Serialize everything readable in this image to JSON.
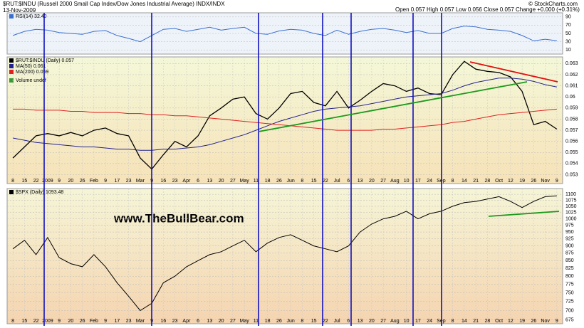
{
  "chart_data": [
    {
      "type": "line",
      "title": "$RUT:$INDU (Russell 2000 Small Cap Index/Dow Jones Industrial Average) INDX/INDX",
      "date": "13-Nov-2009",
      "quote": "Open 0.057 High 0.057 Low 0.056 Close 0.057 Change +0.000 (+0.31%)",
      "credit": "© StockCharts.com",
      "ylim": [
        0,
        100
      ],
      "yticks": [
        10,
        30,
        50,
        70,
        90
      ],
      "grid": true,
      "series": [
        {
          "name": "RSI(14) 32.40",
          "color": "#3a6fd0",
          "values": [
            45,
            55,
            60,
            58,
            52,
            50,
            48,
            55,
            57,
            45,
            38,
            30,
            45,
            60,
            62,
            55,
            60,
            65,
            58,
            62,
            65,
            50,
            48,
            56,
            60,
            58,
            50,
            45,
            58,
            48,
            55,
            60,
            62,
            58,
            52,
            57,
            50,
            50,
            62,
            68,
            66,
            60,
            58,
            55,
            45,
            32,
            36,
            32.4
          ]
        }
      ]
    },
    {
      "type": "line",
      "categories": [
        "8",
        "15",
        "22",
        "2009",
        "9",
        "20",
        "26",
        "Feb",
        "9",
        "17",
        "23",
        "Mar",
        "9",
        "16",
        "23",
        "Apr",
        "6",
        "13",
        "20",
        "27",
        "May",
        "11",
        "18",
        "26",
        "Jun",
        "8",
        "15",
        "22",
        "Jul",
        "6",
        "13",
        "20",
        "27",
        "Aug",
        "10",
        "17",
        "24",
        "Sep",
        "8",
        "14",
        "21",
        "28",
        "Oct",
        "12",
        "19",
        "26",
        "Nov",
        "9"
      ],
      "ylim": [
        0.0522,
        0.0636
      ],
      "yticks": [
        0.053,
        0.054,
        0.055,
        0.056,
        0.057,
        0.058,
        0.059,
        0.06,
        0.061,
        0.062,
        0.063
      ],
      "grid": true,
      "volume_label": "Volume undef",
      "series": [
        {
          "name": "$RUT:$INDU (Daily) 0.057",
          "color": "#000000",
          "values": [
            0.0545,
            0.0555,
            0.0565,
            0.0567,
            0.0565,
            0.0568,
            0.0565,
            0.057,
            0.0572,
            0.0567,
            0.0565,
            0.0545,
            0.0535,
            0.0548,
            0.056,
            0.0555,
            0.0565,
            0.0583,
            0.059,
            0.0598,
            0.06,
            0.0585,
            0.058,
            0.059,
            0.0603,
            0.0605,
            0.0595,
            0.0592,
            0.0605,
            0.059,
            0.0597,
            0.0605,
            0.0612,
            0.061,
            0.0605,
            0.0608,
            0.0603,
            0.0602,
            0.062,
            0.0632,
            0.0625,
            0.0623,
            0.0622,
            0.0618,
            0.0605,
            0.0575,
            0.0578,
            0.0571
          ]
        },
        {
          "name": "MA(50) 0.061",
          "color": "#22228f",
          "values": [
            0.0563,
            0.0561,
            0.0559,
            0.0558,
            0.0557,
            0.0556,
            0.0555,
            0.0555,
            0.0554,
            0.0553,
            0.0553,
            0.0552,
            0.0552,
            0.0553,
            0.0553,
            0.0554,
            0.0555,
            0.0557,
            0.056,
            0.0563,
            0.0566,
            0.057,
            0.0574,
            0.0578,
            0.0581,
            0.0584,
            0.0587,
            0.0589,
            0.059,
            0.0591,
            0.0592,
            0.0594,
            0.0596,
            0.0598,
            0.06,
            0.0601,
            0.0602,
            0.0603,
            0.0606,
            0.061,
            0.0613,
            0.0615,
            0.0617,
            0.0617,
            0.0616,
            0.0614,
            0.0611,
            0.0609
          ]
        },
        {
          "name": "MA(200) 0.059",
          "color": "#e02020",
          "values": [
            0.0589,
            0.0589,
            0.0588,
            0.0588,
            0.0588,
            0.0587,
            0.0587,
            0.0586,
            0.0586,
            0.0586,
            0.0585,
            0.0585,
            0.0584,
            0.0584,
            0.0583,
            0.0583,
            0.0582,
            0.0581,
            0.058,
            0.0579,
            0.0578,
            0.0577,
            0.0576,
            0.0575,
            0.0574,
            0.0573,
            0.0572,
            0.0571,
            0.057,
            0.057,
            0.057,
            0.057,
            0.0571,
            0.0571,
            0.0572,
            0.0573,
            0.0574,
            0.0575,
            0.0577,
            0.0578,
            0.058,
            0.0582,
            0.0584,
            0.0585,
            0.0586,
            0.0587,
            0.0588,
            0.0589
          ]
        }
      ]
    },
    {
      "type": "line",
      "categories": [
        "8",
        "15",
        "22",
        "2009",
        "9",
        "20",
        "26",
        "Feb",
        "9",
        "17",
        "23",
        "Mar",
        "9",
        "16",
        "23",
        "Apr",
        "6",
        "13",
        "20",
        "27",
        "May",
        "11",
        "18",
        "26",
        "Jun",
        "8",
        "15",
        "22",
        "Jul",
        "6",
        "13",
        "20",
        "27",
        "Aug",
        "10",
        "17",
        "24",
        "Sep",
        "8",
        "14",
        "21",
        "28",
        "Oct",
        "12",
        "19",
        "26",
        "Nov",
        "9"
      ],
      "ylim": [
        665,
        1125
      ],
      "log": true,
      "yticks": [
        675,
        700,
        725,
        750,
        775,
        800,
        825,
        850,
        875,
        900,
        925,
        950,
        975,
        1000,
        1025,
        1050,
        1075,
        1100
      ],
      "grid": true,
      "annotation": "www.TheBullBear.com",
      "series": [
        {
          "name": "$SPX (Daily) 1093.48",
          "color": "#000000",
          "values": [
            890,
            920,
            870,
            930,
            860,
            840,
            830,
            870,
            830,
            780,
            740,
            700,
            720,
            780,
            800,
            830,
            850,
            870,
            880,
            900,
            920,
            880,
            910,
            930,
            940,
            920,
            900,
            890,
            880,
            900,
            950,
            980,
            1000,
            1010,
            1030,
            1000,
            1020,
            1030,
            1050,
            1065,
            1070,
            1080,
            1090,
            1070,
            1045,
            1070,
            1090,
            1093.48
          ]
        }
      ]
    }
  ]
}
